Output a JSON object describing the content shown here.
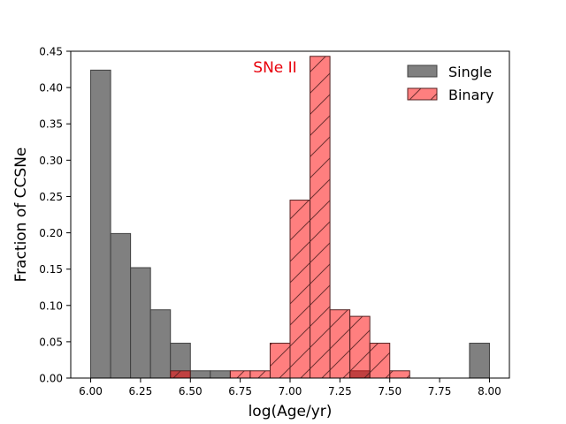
{
  "chart_data": {
    "type": "bar",
    "subtype": "histogram",
    "xlabel": "log(Age/yr)",
    "ylabel": "Fraction of CCSNe",
    "annotation": "SNe II",
    "xlim": [
      5.9,
      8.1
    ],
    "ylim": [
      0,
      0.45
    ],
    "bin_width": 0.1,
    "x_ticks": [
      6.0,
      6.25,
      6.5,
      6.75,
      7.0,
      7.25,
      7.5,
      7.75,
      8.0
    ],
    "x_tick_labels": [
      "6.00",
      "6.25",
      "6.50",
      "6.75",
      "7.00",
      "7.25",
      "7.50",
      "7.75",
      "8.00"
    ],
    "y_ticks": [
      0.0,
      0.05,
      0.1,
      0.15,
      0.2,
      0.25,
      0.3,
      0.35,
      0.4,
      0.45
    ],
    "y_tick_labels": [
      "0.00",
      "0.05",
      "0.10",
      "0.15",
      "0.20",
      "0.25",
      "0.30",
      "0.35",
      "0.40",
      "0.45"
    ],
    "legend_position": "top-right",
    "series": [
      {
        "name": "Single",
        "color": "#808080",
        "edge_color": "#404040",
        "hatch": "none",
        "bins": [
          {
            "left": 6.0,
            "value": 0.424
          },
          {
            "left": 6.1,
            "value": 0.199
          },
          {
            "left": 6.2,
            "value": 0.152
          },
          {
            "left": 6.3,
            "value": 0.094
          },
          {
            "left": 6.4,
            "value": 0.048
          },
          {
            "left": 6.5,
            "value": 0.01
          },
          {
            "left": 6.6,
            "value": 0.01
          },
          {
            "left": 7.3,
            "value": 0.01
          },
          {
            "left": 7.9,
            "value": 0.048
          }
        ]
      },
      {
        "name": "Binary",
        "color": "#ff0000",
        "edge_color": "#552222",
        "hatch": "diagonal",
        "bins": [
          {
            "left": 6.4,
            "value": 0.01
          },
          {
            "left": 6.7,
            "value": 0.01
          },
          {
            "left": 6.8,
            "value": 0.01
          },
          {
            "left": 6.9,
            "value": 0.048
          },
          {
            "left": 7.0,
            "value": 0.245
          },
          {
            "left": 7.1,
            "value": 0.443
          },
          {
            "left": 7.2,
            "value": 0.094
          },
          {
            "left": 7.3,
            "value": 0.085
          },
          {
            "left": 7.4,
            "value": 0.048
          },
          {
            "left": 7.5,
            "value": 0.01
          }
        ]
      }
    ]
  },
  "colors": {
    "annotation": "#e8000b",
    "axis": "#000000"
  }
}
